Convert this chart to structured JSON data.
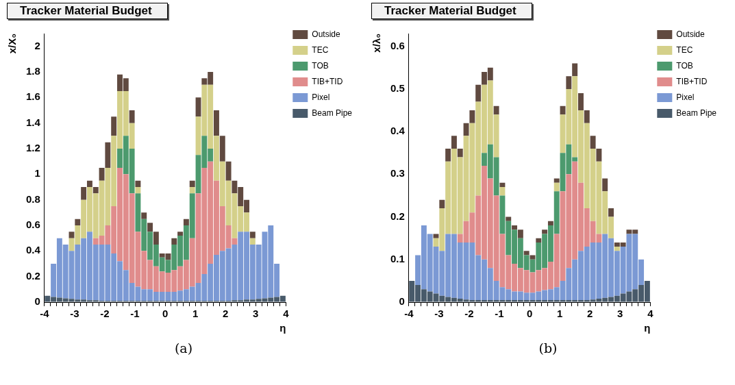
{
  "chart_data": [
    {
      "type": "bar",
      "stacked": true,
      "title": "Tracker Material Budget",
      "xlabel": "η",
      "ylabel": "x/X₀",
      "annotations": [
        "(a)"
      ],
      "legend": "top right",
      "grid": false,
      "x": [
        -3.9,
        -3.7,
        -3.5,
        -3.3,
        -3.1,
        -2.9,
        -2.7,
        -2.5,
        -2.3,
        -2.1,
        -1.9,
        -1.7,
        -1.5,
        -1.3,
        -1.1,
        -0.9,
        -0.7,
        -0.5,
        -0.3,
        -0.1,
        0.1,
        0.3,
        0.5,
        0.7,
        0.9,
        1.1,
        1.3,
        1.5,
        1.7,
        1.9,
        2.1,
        2.3,
        2.5,
        2.7,
        2.9,
        3.1,
        3.3,
        3.5,
        3.7,
        3.9
      ],
      "xlim": [
        -4,
        4
      ],
      "xticks": [
        -4,
        {
          "value": -3.8,
          "label": null
        },
        {
          "value": -3.6,
          "label": null
        },
        {
          "value": -3.4,
          "label": null
        },
        {
          "value": -3.2,
          "label": null
        },
        -3,
        {
          "value": -2.8,
          "label": null
        },
        {
          "value": -2.6,
          "label": null
        },
        {
          "value": -2.4,
          "label": null
        },
        {
          "value": -2.2,
          "label": null
        },
        -2,
        {
          "value": -1.8,
          "label": null
        },
        {
          "value": -1.6,
          "label": null
        },
        {
          "value": -1.4,
          "label": null
        },
        {
          "value": -1.2,
          "label": null
        },
        -1,
        {
          "value": -0.8,
          "label": null
        },
        {
          "value": -0.6,
          "label": null
        },
        {
          "value": -0.4,
          "label": null
        },
        {
          "value": -0.2,
          "label": null
        },
        0,
        {
          "value": 0.2,
          "label": null
        },
        {
          "value": 0.4,
          "label": null
        },
        {
          "value": 0.6,
          "label": null
        },
        {
          "value": 0.8,
          "label": null
        },
        1,
        {
          "value": 1.2,
          "label": null
        },
        {
          "value": 1.4,
          "label": null
        },
        {
          "value": 1.6,
          "label": null
        },
        {
          "value": 1.8,
          "label": null
        },
        2,
        {
          "value": 2.2,
          "label": null
        },
        {
          "value": 2.4,
          "label": null
        },
        {
          "value": 2.6,
          "label": null
        },
        {
          "value": 2.8,
          "label": null
        },
        3,
        {
          "value": 3.2,
          "label": null
        },
        {
          "value": 3.4,
          "label": null
        },
        {
          "value": 3.6,
          "label": null
        },
        {
          "value": 3.8,
          "label": null
        },
        4
      ],
      "ylim": [
        0,
        2.1
      ],
      "yticks": [
        0,
        0.2,
        0.4,
        0.6,
        0.8,
        1,
        1.2,
        1.4,
        1.6,
        1.8,
        2
      ],
      "series": [
        {
          "name": "Beam Pipe",
          "color": "#485a6a",
          "values": [
            0.05,
            0.04,
            0.035,
            0.03,
            0.025,
            0.02,
            0.02,
            0.015,
            0.015,
            0.01,
            0.01,
            0.01,
            0.01,
            0.01,
            0.01,
            0.01,
            0.01,
            0.01,
            0.01,
            0.01,
            0.01,
            0.01,
            0.01,
            0.01,
            0.01,
            0.01,
            0.01,
            0.01,
            0.01,
            0.01,
            0.01,
            0.015,
            0.015,
            0.02,
            0.02,
            0.025,
            0.03,
            0.035,
            0.04,
            0.05
          ]
        },
        {
          "name": "Pixel",
          "color": "#7b99d4",
          "values": [
            0,
            0.26,
            0.465,
            0.42,
            0.375,
            0.43,
            0.48,
            0.535,
            0.435,
            0.44,
            0.44,
            0.37,
            0.31,
            0.24,
            0.14,
            0.11,
            0.09,
            0.09,
            0.07,
            0.07,
            0.07,
            0.07,
            0.08,
            0.09,
            0.11,
            0.14,
            0.21,
            0.29,
            0.36,
            0.39,
            0.41,
            0.435,
            0.535,
            0.53,
            0.43,
            0.425,
            0.52,
            0.565,
            0.26,
            0
          ]
        },
        {
          "name": "TIB+TID",
          "color": "#e08c8c",
          "values": [
            0,
            0,
            0,
            0,
            0,
            0,
            0,
            0,
            0.05,
            0.07,
            0.15,
            0.37,
            0.73,
            0.75,
            0.7,
            0.43,
            0.3,
            0.23,
            0.2,
            0.16,
            0.15,
            0.17,
            0.19,
            0.23,
            0.38,
            0.7,
            0.83,
            0.8,
            0.58,
            0.35,
            0.18,
            0.05,
            0,
            0,
            0,
            0,
            0,
            0,
            0,
            0
          ]
        },
        {
          "name": "TOB",
          "color": "#4c9a6e",
          "values": [
            0,
            0,
            0,
            0,
            0,
            0,
            0,
            0,
            0,
            0,
            0,
            0,
            0.15,
            0.3,
            0.35,
            0.3,
            0.25,
            0.22,
            0.17,
            0.11,
            0.1,
            0.2,
            0.24,
            0.27,
            0.35,
            0.3,
            0.25,
            0.1,
            0,
            0,
            0,
            0,
            0,
            0,
            0,
            0,
            0,
            0,
            0,
            0
          ]
        },
        {
          "name": "TEC",
          "color": "#d4d08a",
          "values": [
            0,
            0,
            0,
            0,
            0.1,
            0.15,
            0.3,
            0.35,
            0.35,
            0.43,
            0.45,
            0.55,
            0.45,
            0.35,
            0.2,
            0.05,
            0,
            0,
            0,
            0,
            0,
            0,
            0,
            0,
            0.05,
            0.3,
            0.4,
            0.5,
            0.35,
            0.35,
            0.35,
            0.35,
            0.2,
            0.15,
            0.05,
            0,
            0,
            0,
            0,
            0
          ]
        },
        {
          "name": "Outside",
          "color": "#604a40",
          "values": [
            0,
            0,
            0,
            0,
            0.05,
            0.05,
            0.1,
            0.05,
            0.05,
            0.1,
            0.2,
            0.15,
            0.13,
            0.1,
            0.1,
            0.05,
            0.05,
            0.07,
            0.1,
            0.03,
            0.05,
            0.05,
            0.03,
            0.05,
            0.05,
            0.15,
            0.05,
            0.1,
            0.2,
            0.2,
            0.15,
            0.1,
            0.15,
            0.1,
            0.05,
            0,
            0,
            0,
            0,
            0
          ]
        }
      ]
    },
    {
      "type": "bar",
      "stacked": true,
      "title": "Tracker Material Budget",
      "xlabel": "η",
      "ylabel": "x/λ₀",
      "annotations": [
        "(b)"
      ],
      "legend": "top right",
      "grid": false,
      "x": [
        -3.9,
        -3.7,
        -3.5,
        -3.3,
        -3.1,
        -2.9,
        -2.7,
        -2.5,
        -2.3,
        -2.1,
        -1.9,
        -1.7,
        -1.5,
        -1.3,
        -1.1,
        -0.9,
        -0.7,
        -0.5,
        -0.3,
        -0.1,
        0.1,
        0.3,
        0.5,
        0.7,
        0.9,
        1.1,
        1.3,
        1.5,
        1.7,
        1.9,
        2.1,
        2.3,
        2.5,
        2.7,
        2.9,
        3.1,
        3.3,
        3.5,
        3.7,
        3.9
      ],
      "xlim": [
        -4,
        4
      ],
      "xticks": [
        -4,
        {
          "value": -3.8,
          "label": null
        },
        {
          "value": -3.6,
          "label": null
        },
        {
          "value": -3.4,
          "label": null
        },
        {
          "value": -3.2,
          "label": null
        },
        -3,
        {
          "value": -2.8,
          "label": null
        },
        {
          "value": -2.6,
          "label": null
        },
        {
          "value": -2.4,
          "label": null
        },
        {
          "value": -2.2,
          "label": null
        },
        -2,
        {
          "value": -1.8,
          "label": null
        },
        {
          "value": -1.6,
          "label": null
        },
        {
          "value": -1.4,
          "label": null
        },
        {
          "value": -1.2,
          "label": null
        },
        -1,
        {
          "value": -0.8,
          "label": null
        },
        {
          "value": -0.6,
          "label": null
        },
        {
          "value": -0.4,
          "label": null
        },
        {
          "value": -0.2,
          "label": null
        },
        0,
        {
          "value": 0.2,
          "label": null
        },
        {
          "value": 0.4,
          "label": null
        },
        {
          "value": 0.6,
          "label": null
        },
        {
          "value": 0.8,
          "label": null
        },
        1,
        {
          "value": 1.2,
          "label": null
        },
        {
          "value": 1.4,
          "label": null
        },
        {
          "value": 1.6,
          "label": null
        },
        {
          "value": 1.8,
          "label": null
        },
        2,
        {
          "value": 2.2,
          "label": null
        },
        {
          "value": 2.4,
          "label": null
        },
        {
          "value": 2.6,
          "label": null
        },
        {
          "value": 2.8,
          "label": null
        },
        3,
        {
          "value": 3.2,
          "label": null
        },
        {
          "value": 3.4,
          "label": null
        },
        {
          "value": 3.6,
          "label": null
        },
        {
          "value": 3.8,
          "label": null
        },
        4
      ],
      "ylim": [
        0,
        0.63
      ],
      "yticks": [
        0,
        0.1,
        0.2,
        0.3,
        0.4,
        0.5,
        0.6
      ],
      "series": [
        {
          "name": "Beam Pipe",
          "color": "#485a6a",
          "values": [
            0.05,
            0.04,
            0.03,
            0.025,
            0.02,
            0.015,
            0.012,
            0.01,
            0.008,
            0.006,
            0.005,
            0.005,
            0.005,
            0.005,
            0.005,
            0.005,
            0.005,
            0.005,
            0.005,
            0.005,
            0.005,
            0.005,
            0.005,
            0.005,
            0.005,
            0.005,
            0.005,
            0.005,
            0.005,
            0.005,
            0.006,
            0.008,
            0.01,
            0.012,
            0.015,
            0.02,
            0.025,
            0.03,
            0.04,
            0.05
          ]
        },
        {
          "name": "Pixel",
          "color": "#7b99d4",
          "values": [
            0,
            0.07,
            0.15,
            0.135,
            0.11,
            0.105,
            0.148,
            0.15,
            0.132,
            0.134,
            0.135,
            0.105,
            0.095,
            0.075,
            0.045,
            0.03,
            0.025,
            0.02,
            0.02,
            0.017,
            0.017,
            0.02,
            0.023,
            0.025,
            0.03,
            0.045,
            0.075,
            0.095,
            0.115,
            0.125,
            0.134,
            0.132,
            0.15,
            0.138,
            0.105,
            0.11,
            0.135,
            0.13,
            0.06,
            0
          ]
        },
        {
          "name": "TIB+TID",
          "color": "#e08c8c",
          "values": [
            0,
            0,
            0,
            0,
            0,
            0,
            0,
            0,
            0.02,
            0.05,
            0.07,
            0.14,
            0.22,
            0.21,
            0.2,
            0.125,
            0.08,
            0.065,
            0.055,
            0.053,
            0.048,
            0.05,
            0.052,
            0.065,
            0.125,
            0.21,
            0.22,
            0.23,
            0.16,
            0.09,
            0.05,
            0.02,
            0,
            0,
            0,
            0,
            0,
            0,
            0,
            0
          ]
        },
        {
          "name": "TOB",
          "color": "#4c9a6e",
          "values": [
            0,
            0,
            0,
            0,
            0,
            0,
            0,
            0,
            0,
            0,
            0,
            0,
            0.03,
            0.08,
            0.09,
            0.09,
            0.08,
            0.08,
            0.07,
            0.035,
            0.03,
            0.065,
            0.08,
            0.085,
            0.1,
            0.09,
            0.07,
            0.01,
            0,
            0,
            0,
            0,
            0,
            0,
            0,
            0,
            0,
            0,
            0,
            0
          ]
        },
        {
          "name": "TEC",
          "color": "#d4d08a",
          "values": [
            0,
            0,
            0,
            0,
            0.02,
            0.1,
            0.17,
            0.2,
            0.18,
            0.2,
            0.21,
            0.22,
            0.16,
            0.15,
            0.1,
            0.02,
            0,
            0,
            0,
            0,
            0,
            0,
            0,
            0,
            0.02,
            0.09,
            0.13,
            0.19,
            0.17,
            0.2,
            0.17,
            0.17,
            0.1,
            0.05,
            0.01,
            0,
            0,
            0,
            0,
            0
          ]
        },
        {
          "name": "Outside",
          "color": "#604a40",
          "values": [
            0,
            0,
            0,
            0,
            0.01,
            0.02,
            0.03,
            0.03,
            0.02,
            0.03,
            0.03,
            0.04,
            0.03,
            0.03,
            0.02,
            0.01,
            0.01,
            0.01,
            0.02,
            0.01,
            0.01,
            0.01,
            0.01,
            0.01,
            0.01,
            0.02,
            0.03,
            0.03,
            0.04,
            0.03,
            0.03,
            0.03,
            0.03,
            0.02,
            0.01,
            0.01,
            0.01,
            0.01,
            0,
            0
          ]
        }
      ]
    }
  ]
}
